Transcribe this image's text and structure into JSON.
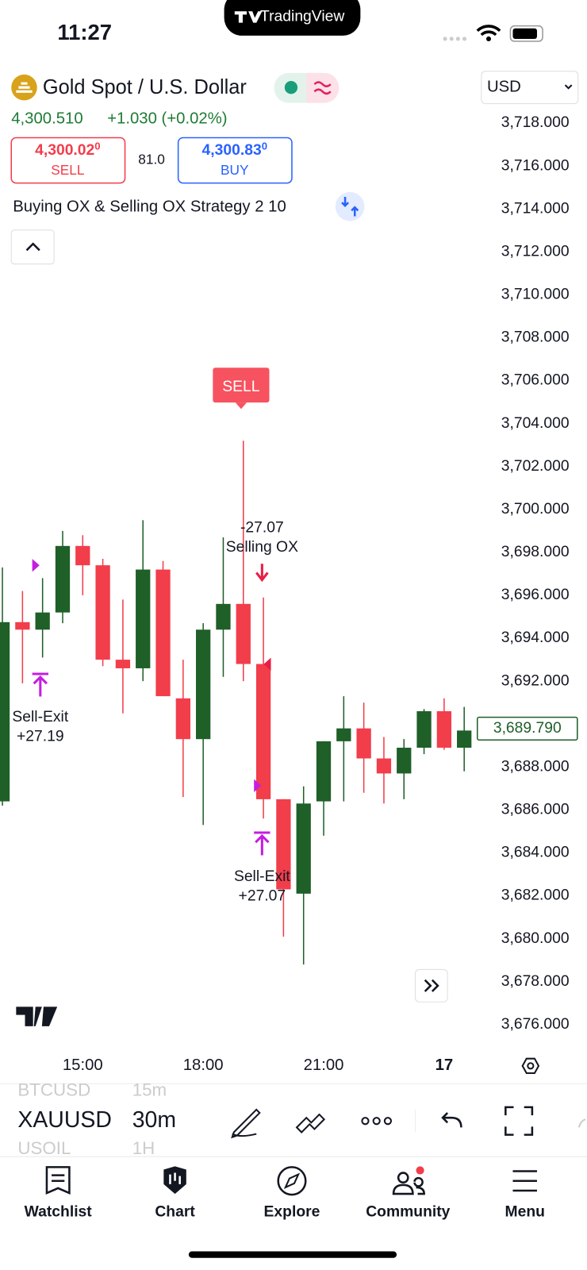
{
  "status_bar": {
    "time": "11:27",
    "app": "TradingView"
  },
  "header": {
    "title": "Gold Spot / U.S. Dollar",
    "currency": "USD",
    "last": "4,300.510",
    "change": "+1.030 (+0.02%)",
    "sell_price": "4,300.02",
    "sell_price_sup": "0",
    "sell_label": "SELL",
    "spread": "81.0",
    "buy_price": "4,300.83",
    "buy_price_sup": "0",
    "buy_label": "BUY",
    "strategy": "Buying OX & Selling OX Strategy 2 10"
  },
  "chart_data": {
    "type": "candlestick",
    "categories": [
      null,
      null,
      null,
      null,
      "15:00",
      null,
      null,
      null,
      null,
      null,
      "18:00",
      null,
      null,
      null,
      null,
      null,
      "21:00",
      null,
      null,
      null,
      null,
      null,
      "17",
      null
    ],
    "open": [
      3686.4,
      3694.75,
      3694.4,
      3695.2,
      3698.3,
      3697.4,
      3693.0,
      3692.6,
      3697.2,
      3691.2,
      3689.3,
      3694.4,
      3695.6,
      3692.8,
      3686.5,
      3682.1,
      3686.4,
      3689.2,
      3689.8,
      3688.4,
      3687.7,
      3688.9,
      3690.6,
      3688.9
    ],
    "high": [
      3697.3,
      3696.2,
      3696.8,
      3699.0,
      3698.8,
      3697.7,
      3695.8,
      3699.5,
      3697.6,
      3693.0,
      3694.7,
      3698.7,
      3703.2,
      3695.9,
      3686.5,
      3687.1,
      3689.2,
      3691.3,
      3691.0,
      3689.4,
      3689.3,
      3690.7,
      3691.2,
      3690.8
    ],
    "low": [
      3686.2,
      3691.9,
      3693.1,
      3694.7,
      3696.0,
      3692.7,
      3690.5,
      3692.0,
      3691.3,
      3686.6,
      3685.3,
      3692.2,
      3692.0,
      3685.6,
      3680.1,
      3678.8,
      3684.8,
      3686.4,
      3686.8,
      3686.3,
      3686.5,
      3688.6,
      3688.8,
      3687.8
    ],
    "close": [
      3694.75,
      3694.4,
      3695.2,
      3698.3,
      3697.4,
      3693.0,
      3692.6,
      3697.2,
      3691.3,
      3689.3,
      3694.4,
      3695.6,
      3692.8,
      3686.5,
      3682.3,
      3686.3,
      3689.2,
      3689.8,
      3688.4,
      3687.7,
      3688.9,
      3690.6,
      3688.9,
      3689.7
    ],
    "up_color": "#1f5f28",
    "down_color": "#f23d4b",
    "ylim": [
      3676,
      3718
    ],
    "yticks": [
      {
        "value": 3718,
        "label": "3,718.000"
      },
      {
        "value": 3716,
        "label": "3,716.000"
      },
      {
        "value": 3714,
        "label": "3,714.000"
      },
      {
        "value": 3712,
        "label": "3,712.000"
      },
      {
        "value": 3710,
        "label": "3,710.000"
      },
      {
        "value": 3708,
        "label": "3,708.000"
      },
      {
        "value": 3706,
        "label": "3,706.000"
      },
      {
        "value": 3704,
        "label": "3,704.000"
      },
      {
        "value": 3702,
        "label": "3,702.000"
      },
      {
        "value": 3700,
        "label": "3,700.000"
      },
      {
        "value": 3698,
        "label": "3,698.000"
      },
      {
        "value": 3696,
        "label": "3,696.000"
      },
      {
        "value": 3694,
        "label": "3,694.000"
      },
      {
        "value": 3692,
        "label": "3,692.000"
      },
      {
        "value": 3690,
        "label": "3,690.000"
      },
      {
        "value": 3688,
        "label": "3,688.000"
      },
      {
        "value": 3686,
        "label": "3,686.000"
      },
      {
        "value": 3684,
        "label": "3,684.000"
      },
      {
        "value": 3682,
        "label": "3,682.000"
      },
      {
        "value": 3680,
        "label": "3,680.000"
      },
      {
        "value": 3678,
        "label": "3,678.000"
      },
      {
        "value": 3676,
        "label": "3,676.000"
      }
    ],
    "last_price": {
      "value": 3689.79,
      "label": "3,689.790"
    },
    "annotations": {
      "sell_tag": "SELL",
      "entry_pnl": "-27.07",
      "entry_name": "Selling OX",
      "exit_1_name": "Sell-Exit",
      "exit_1_pnl": "+27.19",
      "exit_2_name": "Sell-Exit",
      "exit_2_pnl": "+27.07"
    }
  },
  "toolbar": {
    "symbols": [
      "BTCUSD",
      "XAUUSD",
      "USOIL"
    ],
    "intervals": [
      "15m",
      "30m",
      "1H"
    ]
  },
  "nav": [
    "Watchlist",
    "Chart",
    "Explore",
    "Community",
    "Menu"
  ]
}
